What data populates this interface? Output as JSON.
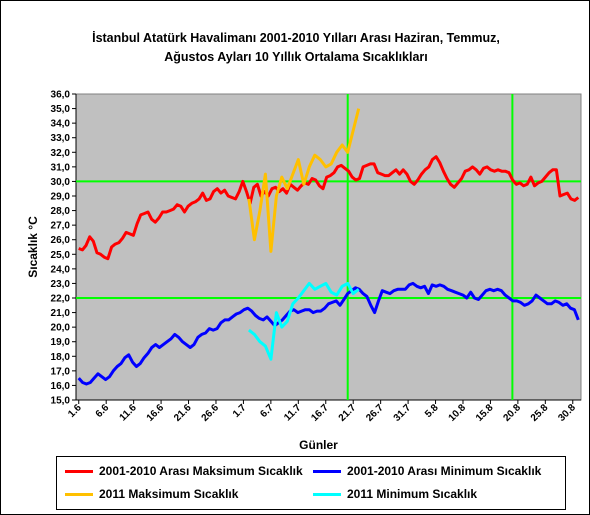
{
  "chart_data": {
    "type": "line",
    "title_line1": "İstanbul Atatürk Havalimanı 2001-2010 Yılları Arası Haziran, Temmuz,",
    "title_line2": "Ağustos Ayları 10 Yıllık Ortalama Sıcaklıkları",
    "xlabel": "Günler",
    "ylabel": "Sıcaklık °C",
    "ylim": [
      15,
      36
    ],
    "y_ticks": [
      "15,0",
      "16,0",
      "17,0",
      "18,0",
      "19,0",
      "20,0",
      "21,0",
      "22,0",
      "23,0",
      "24,0",
      "25,0",
      "26,0",
      "27,0",
      "28,0",
      "29,0",
      "30,0",
      "31,0",
      "32,0",
      "33,0",
      "34,0",
      "35,0",
      "36,0"
    ],
    "x_ticks": [
      "1.6",
      "6.6",
      "11.6",
      "16.6",
      "21.6",
      "26.6",
      "1.7",
      "6.7",
      "11.7",
      "16.7",
      "21.7",
      "26.7",
      "31.7",
      "5.8",
      "10.8",
      "15.8",
      "20.8",
      "25.8",
      "30.8"
    ],
    "reference_lines": {
      "y": [
        30,
        22
      ],
      "x_dates": [
        "20.7",
        "19.8"
      ]
    },
    "grid": false,
    "background": "#c0c0c0",
    "series": [
      {
        "name": "2001-2010 Arası Maksimum Sıcaklık",
        "color": "#ff0000",
        "start": "1.6",
        "values": [
          25.4,
          25.3,
          25.6,
          26.2,
          25.9,
          25.1,
          25.0,
          24.8,
          24.7,
          25.5,
          25.7,
          25.8,
          26.1,
          26.5,
          26.4,
          26.3,
          27.1,
          27.7,
          27.8,
          27.9,
          27.4,
          27.2,
          27.5,
          27.9,
          27.9,
          28.0,
          28.1,
          28.4,
          28.3,
          27.9,
          28.3,
          28.5,
          28.6,
          28.8,
          29.2,
          28.7,
          28.8,
          29.3,
          29.5,
          29.2,
          29.4,
          29.0,
          28.9,
          28.8,
          29.3,
          30.0,
          29.3,
          28.5,
          29.6,
          29.8,
          29.0,
          29.3,
          29.0,
          29.5,
          29.6,
          29.3,
          29.5,
          29.2,
          29.8,
          29.6,
          29.4,
          29.7,
          29.9,
          29.8,
          30.2,
          30.1,
          29.7,
          29.5,
          30.3,
          30.4,
          30.6,
          31.0,
          31.1,
          30.9,
          30.7,
          30.3,
          30.1,
          30.2,
          31.0,
          31.1,
          31.2,
          31.2,
          30.6,
          30.5,
          30.4,
          30.4,
          30.6,
          30.8,
          30.5,
          30.8,
          30.5,
          30.0,
          29.8,
          30.1,
          30.5,
          30.8,
          31.0,
          31.5,
          31.7,
          31.3,
          30.7,
          30.2,
          29.8,
          29.6,
          29.9,
          30.2,
          30.7,
          30.8,
          31.0,
          30.8,
          30.5,
          30.9,
          31.0,
          30.8,
          30.7,
          30.8,
          30.7,
          30.7,
          30.6,
          30.1,
          29.8,
          29.9,
          29.7,
          29.8,
          30.3,
          29.7,
          29.9,
          30.0,
          30.3,
          30.6,
          30.8,
          30.8,
          29.0,
          29.1,
          29.2,
          28.8,
          28.7,
          28.9
        ]
      },
      {
        "name": "2001-2010 Arası Minimum Sıcaklık",
        "color": "#0000ff",
        "start": "1.6",
        "values": [
          16.5,
          16.2,
          16.1,
          16.2,
          16.5,
          16.8,
          16.6,
          16.4,
          16.6,
          17.0,
          17.3,
          17.5,
          17.9,
          18.1,
          17.6,
          17.3,
          17.5,
          17.9,
          18.2,
          18.6,
          18.8,
          18.6,
          18.8,
          19.0,
          19.2,
          19.5,
          19.3,
          19.0,
          18.8,
          18.6,
          18.8,
          19.3,
          19.5,
          19.6,
          19.9,
          19.8,
          19.9,
          20.3,
          20.5,
          20.5,
          20.7,
          20.9,
          21.0,
          21.2,
          21.3,
          21.1,
          20.8,
          20.6,
          20.5,
          20.7,
          20.4,
          20.1,
          20.3,
          20.5,
          20.8,
          21.1,
          21.2,
          21.0,
          21.1,
          21.2,
          21.2,
          21.0,
          21.1,
          21.1,
          21.3,
          21.6,
          21.7,
          21.8,
          21.5,
          21.9,
          22.3,
          22.5,
          22.7,
          22.6,
          22.3,
          22.1,
          21.5,
          21.0,
          21.8,
          22.5,
          22.4,
          22.3,
          22.5,
          22.6,
          22.6,
          22.6,
          22.9,
          23.0,
          22.8,
          22.7,
          22.8,
          22.3,
          22.9,
          22.8,
          22.9,
          22.8,
          22.6,
          22.5,
          22.4,
          22.3,
          22.2,
          22.0,
          22.4,
          22.0,
          21.9,
          22.2,
          22.5,
          22.6,
          22.5,
          22.6,
          22.5,
          22.2,
          22.0,
          21.8,
          21.8,
          21.7,
          21.5,
          21.6,
          21.8,
          22.2,
          22.0,
          21.8,
          21.6,
          21.6,
          21.8,
          21.7,
          21.5,
          21.6,
          21.3,
          21.2,
          20.5
        ]
      },
      {
        "name": "2011 Maksimum Sıcaklık",
        "color": "#ffc000",
        "start": "2.7",
        "values": [
          28.8,
          26.0,
          28.0,
          30.5,
          25.2,
          29.0,
          30.3,
          29.5,
          30.5,
          31.5,
          29.8,
          31.0,
          31.8,
          31.5,
          31.0,
          31.2,
          32.0,
          32.5,
          32.0,
          33.5,
          35.0
        ]
      },
      {
        "name": "2011 Minimum Sıcaklık",
        "color": "#00ffff",
        "start": "2.7",
        "values": [
          19.8,
          19.5,
          19.0,
          18.7,
          17.8,
          21.0,
          20.0,
          20.4,
          21.6,
          22.0,
          22.5,
          23.0,
          22.6,
          22.8,
          23.0,
          22.4,
          22.2,
          22.8,
          23.0,
          22.3,
          22.6
        ]
      }
    ]
  }
}
